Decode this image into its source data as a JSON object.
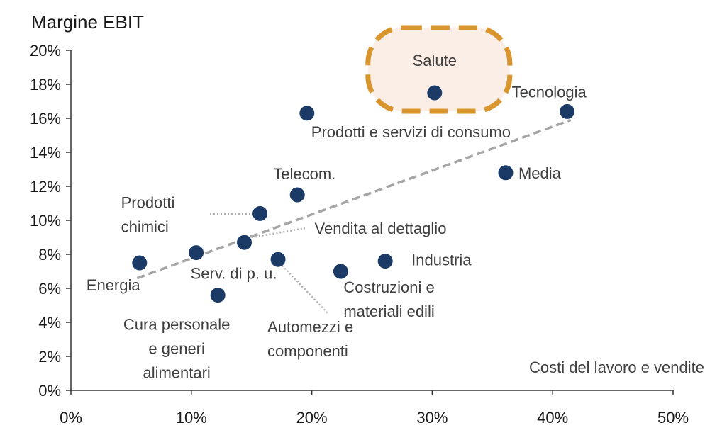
{
  "chart_data": {
    "type": "scatter",
    "title": "",
    "ylabel": "Margine EBIT",
    "xlabel": "",
    "note": "Costi del lavoro e vendite",
    "xlim": [
      0,
      50
    ],
    "ylim": [
      0,
      20
    ],
    "x_ticks": [
      "0%",
      "10%",
      "20%",
      "30%",
      "40%",
      "50%"
    ],
    "y_ticks": [
      "0%",
      "2%",
      "4%",
      "6%",
      "8%",
      "10%",
      "12%",
      "14%",
      "16%",
      "18%",
      "20%"
    ],
    "grid": false,
    "marker_color": "#1b3a66",
    "trend_color": "#a6a6a6",
    "highlight_color": "#d9952e",
    "highlight_fill": "#fbeee6",
    "trendline": {
      "x": [
        5.5,
        41.5
      ],
      "y": [
        6.6,
        15.9
      ]
    },
    "points": [
      {
        "label": "Salute",
        "x": 30.2,
        "y": 17.5,
        "highlight": true
      },
      {
        "label": "Tecnologia",
        "x": 41.2,
        "y": 16.4
      },
      {
        "label": "Prodotti e servizi di consumo",
        "x": 19.6,
        "y": 16.3
      },
      {
        "label": "Media",
        "x": 36.1,
        "y": 12.8
      },
      {
        "label": "Telecom.",
        "x": 18.8,
        "y": 11.5
      },
      {
        "label": "Prodotti chimici",
        "x": 15.7,
        "y": 10.4
      },
      {
        "label": "Vendita al dettaglio",
        "x": 14.4,
        "y": 8.7
      },
      {
        "label": "Serv. di p. u.",
        "x": 10.4,
        "y": 8.1
      },
      {
        "label": "Energia",
        "x": 5.7,
        "y": 7.5
      },
      {
        "label": "Automezzi e componenti",
        "x": 17.2,
        "y": 7.7
      },
      {
        "label": "Industria",
        "x": 26.1,
        "y": 7.6
      },
      {
        "label": "Costruzioni e materiali edili",
        "x": 22.4,
        "y": 7.0
      },
      {
        "label": "Cura personale e generi alimentari",
        "x": 12.2,
        "y": 5.6
      }
    ]
  }
}
